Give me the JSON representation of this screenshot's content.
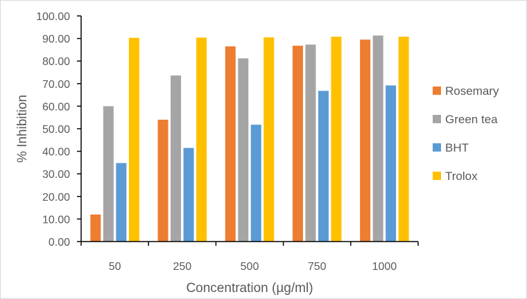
{
  "chart_data": {
    "type": "bar",
    "categories": [
      "50",
      "250",
      "500",
      "750",
      "1000"
    ],
    "series": [
      {
        "name": "Rosemary",
        "color": "#ED7D31",
        "values": [
          12.0,
          54.0,
          86.5,
          86.8,
          89.5
        ]
      },
      {
        "name": "Green tea",
        "color": "#A5A5A5",
        "values": [
          60.0,
          73.6,
          81.2,
          87.3,
          91.3
        ]
      },
      {
        "name": "BHT",
        "color": "#5B9BD5",
        "values": [
          34.8,
          41.5,
          51.8,
          66.8,
          69.2
        ]
      },
      {
        "name": "Trolox",
        "color": "#FFC000",
        "values": [
          90.3,
          90.4,
          90.5,
          90.8,
          90.8
        ]
      }
    ],
    "yticks": [
      "0.00",
      "10.00",
      "20.00",
      "30.00",
      "40.00",
      "50.00",
      "60.00",
      "70.00",
      "80.00",
      "90.00",
      "100.00"
    ],
    "xlabel": "Concentration (µg/ml)",
    "ylabel": "% Inhibition",
    "ylim": [
      0,
      100
    ],
    "grid": false,
    "legend_position": "right"
  }
}
